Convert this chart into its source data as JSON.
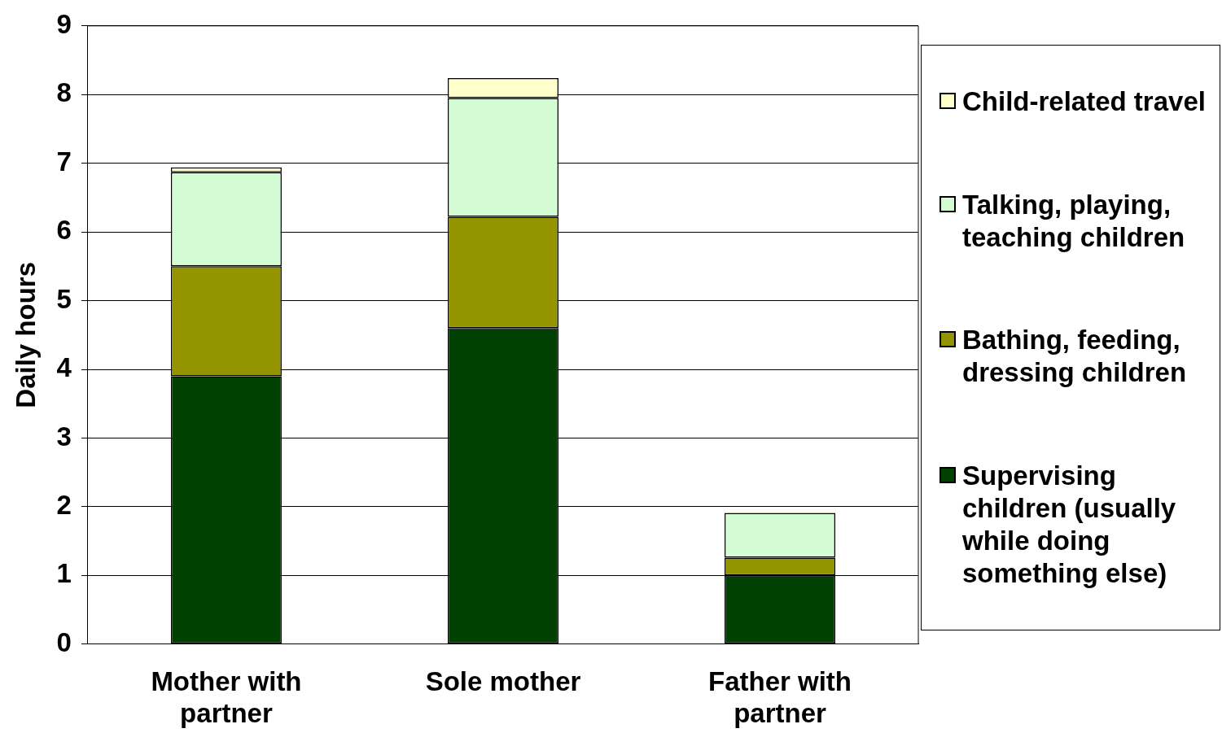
{
  "chart_data": {
    "type": "bar",
    "stacked": true,
    "ylabel": "Daily hours",
    "categories": [
      "Mother with partner",
      "Sole mother",
      "Father with partner"
    ],
    "series": [
      {
        "name": "Supervising children (usually while doing something else)",
        "color": "#004000",
        "values": [
          3.9,
          4.6,
          1.0
        ]
      },
      {
        "name": "Bathing, feeding, dressing children",
        "color": "#949400",
        "values": [
          1.6,
          1.62,
          0.26
        ]
      },
      {
        "name": "Talking, playing, teaching children",
        "color": "#d4fcd4",
        "values": [
          1.37,
          1.73,
          0.65
        ]
      },
      {
        "name": "Child-related travel",
        "color": "#ffffcc",
        "values": [
          0.07,
          0.29,
          0.02
        ]
      }
    ],
    "ylim": [
      0,
      9
    ],
    "yticks": [
      0,
      1,
      2,
      3,
      4,
      5,
      6,
      7,
      8,
      9
    ],
    "grid": "y",
    "legend": "right"
  }
}
